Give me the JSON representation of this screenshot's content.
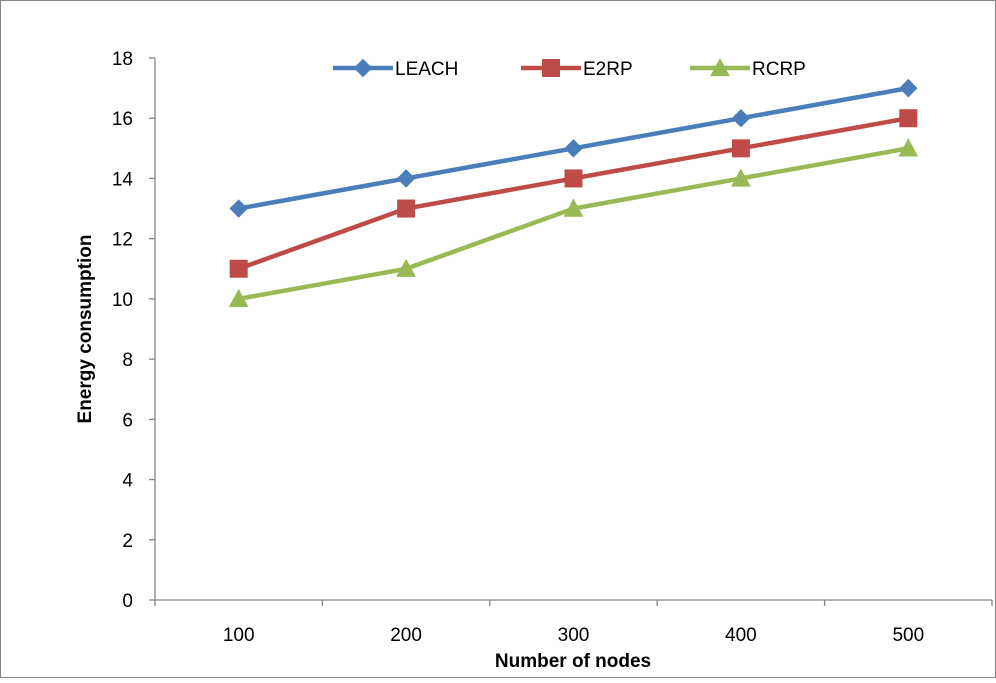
{
  "chart_data": {
    "type": "line",
    "title": "",
    "xlabel": "Number of nodes",
    "ylabel": "Energy consumption",
    "categories": [
      "100",
      "200",
      "300",
      "400",
      "500"
    ],
    "ylim": [
      0,
      18
    ],
    "yticks": [
      "0",
      "2",
      "4",
      "6",
      "8",
      "10",
      "12",
      "14",
      "16",
      "18"
    ],
    "grid": false,
    "legend_position": "top",
    "series": [
      {
        "name": "LEACH",
        "values": [
          13,
          14,
          15,
          16,
          17
        ],
        "color": "#4a7ebb",
        "marker": "diamond"
      },
      {
        "name": "E2RP",
        "values": [
          11,
          13,
          14,
          15,
          16
        ],
        "color": "#be4b48",
        "marker": "square"
      },
      {
        "name": "RCRP",
        "values": [
          10,
          11,
          13,
          14,
          15
        ],
        "color": "#98b954",
        "marker": "triangle"
      }
    ]
  }
}
